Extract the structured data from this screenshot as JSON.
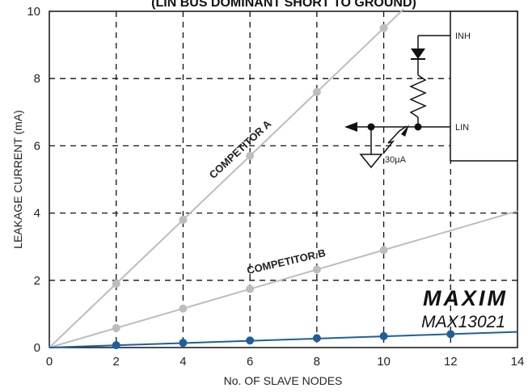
{
  "chart_data": {
    "type": "line",
    "title": "(LIN BUS DOMINANT SHORT TO GROUND)",
    "xlabel": "No. OF SLAVE NODES",
    "ylabel": "LEAKAGE CURRENT (mA)",
    "xlim": [
      0,
      14
    ],
    "ylim": [
      0,
      10
    ],
    "xticks": [
      "0",
      "2",
      "4",
      "6",
      "8",
      "10",
      "12",
      "14"
    ],
    "yticks": [
      "0",
      "2",
      "4",
      "6",
      "8",
      "10"
    ],
    "grid": "dashed",
    "series": [
      {
        "name": "COMPETITOR A",
        "color": "#bdbdbd",
        "x": [
          0,
          2,
          4,
          6,
          8,
          10
        ],
        "y": [
          0,
          1.9,
          3.8,
          5.7,
          7.6,
          9.5
        ],
        "line_to_x": 10.6
      },
      {
        "name": "COMPETITOR B",
        "color": "#bdbdbd",
        "x": [
          0,
          2,
          4,
          6,
          8,
          10
        ],
        "y": [
          0,
          0.58,
          1.16,
          1.74,
          2.32,
          2.9
        ],
        "line_to_x": 14
      },
      {
        "name": "MAX13021",
        "color": "#1f5f99",
        "x": [
          0,
          2,
          4,
          6,
          8,
          10,
          12
        ],
        "y": [
          0,
          0.07,
          0.14,
          0.21,
          0.28,
          0.34,
          0.4
        ],
        "line_to_x": 14
      }
    ],
    "annotations": {
      "competitor_a": "COMPETITOR A",
      "competitor_b": "COMPETITOR B",
      "brand": "MAXIM",
      "part": "MAX13021"
    },
    "circuit": {
      "inh": "INH",
      "lin": "LIN",
      "current": "30µA"
    }
  }
}
